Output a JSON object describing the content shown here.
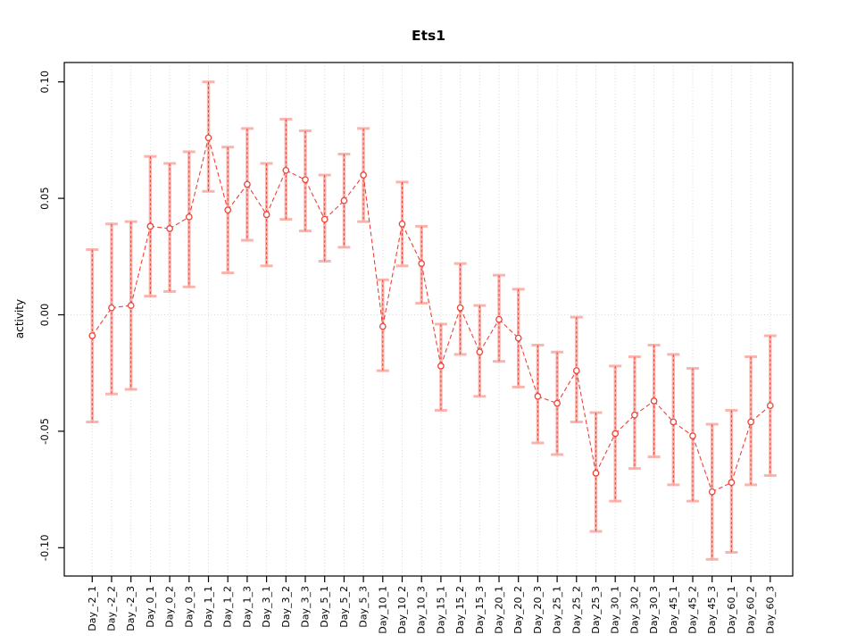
{
  "chart_data": {
    "type": "line",
    "title": "Ets1",
    "xlabel": "",
    "ylabel": "activity",
    "legend": "none",
    "grid": "vertical dotted gridline at every category; horizontal dotted gridline at y=0 only",
    "marker": "open-circle",
    "line_style": "dashed",
    "point_color": "#ee4238",
    "errorbar_color": "#f9b4ae",
    "gridline_color": "#d8d8d8",
    "axis_color": "#000000",
    "ylim": [
      -0.112,
      0.108
    ],
    "ytick_values": [
      -0.1,
      -0.05,
      0.0,
      0.05,
      0.1
    ],
    "ytick_labels": [
      "-0.10",
      "-0.05",
      "0.00",
      "0.05",
      "0.10"
    ],
    "categories": [
      "Day_-2_1",
      "Day_-2_2",
      "Day_-2_3",
      "Day_0_1",
      "Day_0_2",
      "Day_0_3",
      "Day_1_1",
      "Day_1_2",
      "Day_1_3",
      "Day_3_1",
      "Day_3_2",
      "Day_3_3",
      "Day_5_1",
      "Day_5_2",
      "Day_5_3",
      "Day_10_1",
      "Day_10_2",
      "Day_10_3",
      "Day_15_1",
      "Day_15_2",
      "Day_15_3",
      "Day_20_1",
      "Day_20_2",
      "Day_20_3",
      "Day_25_1",
      "Day_25_2",
      "Day_25_3",
      "Day_30_1",
      "Day_30_2",
      "Day_30_3",
      "Day_45_1",
      "Day_45_2",
      "Day_45_3",
      "Day_60_1",
      "Day_60_2",
      "Day_60_3"
    ],
    "series": [
      {
        "name": "activity",
        "values": [
          -0.009,
          0.003,
          0.004,
          0.038,
          0.037,
          0.042,
          0.076,
          0.045,
          0.056,
          0.043,
          0.062,
          0.058,
          0.041,
          0.049,
          0.06,
          -0.005,
          0.039,
          0.022,
          -0.022,
          0.003,
          -0.016,
          -0.002,
          -0.01,
          -0.035,
          -0.038,
          -0.024,
          -0.068,
          -0.051,
          -0.043,
          -0.037,
          -0.046,
          -0.052,
          -0.076,
          -0.072,
          -0.046,
          -0.039
        ],
        "error_high": [
          0.028,
          0.039,
          0.04,
          0.068,
          0.065,
          0.07,
          0.1,
          0.072,
          0.08,
          0.065,
          0.084,
          0.079,
          0.06,
          0.069,
          0.08,
          0.015,
          0.057,
          0.038,
          -0.004,
          0.022,
          0.004,
          0.017,
          0.011,
          -0.013,
          -0.016,
          -0.001,
          -0.042,
          -0.022,
          -0.018,
          -0.013,
          -0.017,
          -0.023,
          -0.047,
          -0.041,
          -0.018,
          -0.009
        ],
        "error_low": [
          -0.046,
          -0.034,
          -0.032,
          0.008,
          0.01,
          0.012,
          0.053,
          0.018,
          0.032,
          0.021,
          0.041,
          0.036,
          0.023,
          0.029,
          0.04,
          -0.024,
          0.021,
          0.005,
          -0.041,
          -0.017,
          -0.035,
          -0.02,
          -0.031,
          -0.055,
          -0.06,
          -0.046,
          -0.093,
          -0.08,
          -0.066,
          -0.061,
          -0.073,
          -0.08,
          -0.105,
          -0.102,
          -0.073,
          -0.069
        ]
      }
    ]
  }
}
